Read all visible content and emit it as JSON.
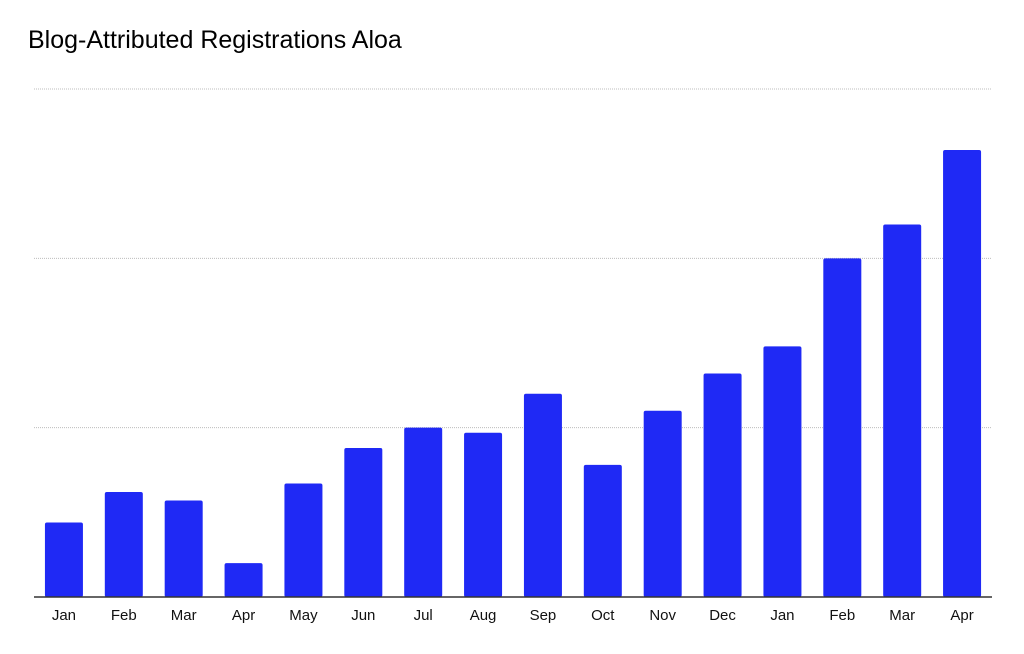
{
  "chart_data": {
    "type": "bar",
    "title": "Blog-Attributed Registrations Aloa",
    "xlabel": "",
    "ylabel": "",
    "categories": [
      "Jan",
      "Feb",
      "Mar",
      "Apr",
      "May",
      "Jun",
      "Jul",
      "Aug",
      "Sep",
      "Oct",
      "Nov",
      "Dec",
      "Jan",
      "Feb",
      "Mar",
      "Apr"
    ],
    "values": [
      22,
      31,
      28.5,
      10,
      33.5,
      44,
      50,
      48.5,
      60,
      39,
      55,
      66,
      74,
      100,
      110,
      132
    ],
    "ylim": [
      0,
      150
    ],
    "gridlines": [
      50,
      100,
      150
    ],
    "grid": true,
    "y_tick_labels_shown": false,
    "legend": "none",
    "bar_color": "#1f29f5",
    "grid_color": "#bdbdbd",
    "axis_color": "#333333"
  }
}
